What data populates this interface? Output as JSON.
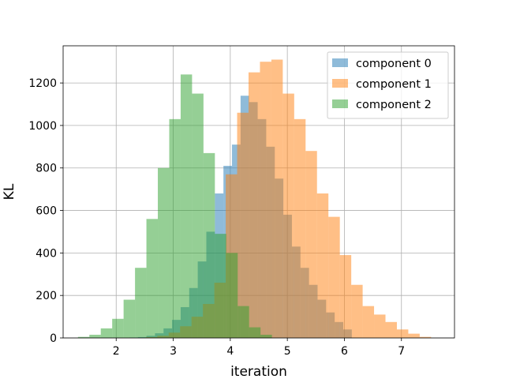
{
  "chart_data": {
    "type": "histogram",
    "xlabel": "iteration",
    "ylabel": "KL",
    "xlim": [
      1.07,
      7.93
    ],
    "ylim": [
      0,
      1375
    ],
    "xticks": [
      2,
      3,
      4,
      5,
      6,
      7
    ],
    "yticks": [
      0,
      200,
      400,
      600,
      800,
      1000,
      1200
    ],
    "grid": true,
    "legend_position": "upper right",
    "series": [
      {
        "name": "component 0",
        "color": "#1f77b4",
        "alpha": 0.5,
        "bin_edges": [
          2.23,
          2.38,
          2.53,
          2.68,
          2.83,
          2.98,
          3.13,
          3.28,
          3.43,
          3.58,
          3.73,
          3.88,
          4.03,
          4.18,
          4.33,
          4.48,
          4.63,
          4.78,
          4.93,
          5.08,
          5.23,
          5.38,
          5.53,
          5.68,
          5.83,
          5.98,
          6.13
        ],
        "counts": [
          2,
          4,
          10,
          22,
          45,
          85,
          145,
          235,
          360,
          500,
          680,
          810,
          910,
          1140,
          1110,
          1030,
          900,
          750,
          580,
          430,
          330,
          250,
          180,
          120,
          75,
          40
        ]
      },
      {
        "name": "component 1",
        "color": "#ff7f0e",
        "alpha": 0.5,
        "bin_edges": [
          2.52,
          2.72,
          2.92,
          3.12,
          3.32,
          3.52,
          3.72,
          3.92,
          4.12,
          4.32,
          4.52,
          4.72,
          4.92,
          5.12,
          5.32,
          5.52,
          5.72,
          5.92,
          6.12,
          6.32,
          6.52,
          6.72,
          6.92,
          7.12,
          7.32,
          7.52
        ],
        "counts": [
          4,
          10,
          25,
          55,
          100,
          160,
          260,
          770,
          1060,
          1250,
          1300,
          1310,
          1150,
          1030,
          880,
          680,
          570,
          390,
          250,
          150,
          110,
          75,
          40,
          20,
          5
        ]
      },
      {
        "name": "component 2",
        "color": "#2ca02c",
        "alpha": 0.5,
        "bin_edges": [
          1.33,
          1.53,
          1.73,
          1.93,
          2.13,
          2.33,
          2.53,
          2.73,
          2.93,
          3.13,
          3.33,
          3.53,
          3.73,
          3.93,
          4.13,
          4.33,
          4.53,
          4.73
        ],
        "counts": [
          5,
          15,
          45,
          90,
          180,
          330,
          560,
          800,
          1030,
          1240,
          1150,
          870,
          490,
          400,
          150,
          50,
          15
        ]
      }
    ]
  }
}
